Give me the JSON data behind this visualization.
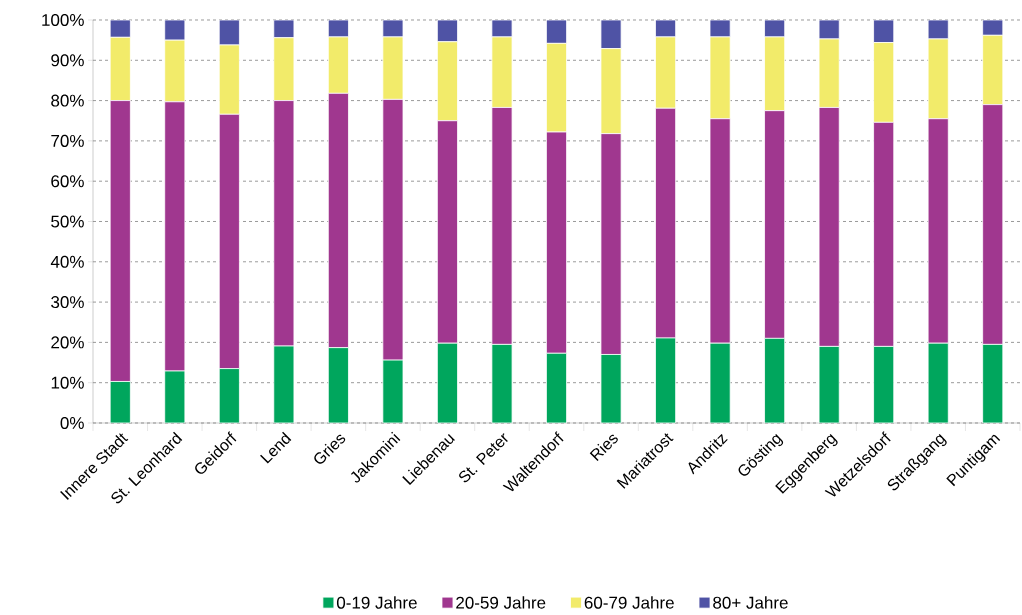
{
  "chart_data": {
    "type": "bar",
    "stacked": true,
    "categories": [
      "Innere Stadt",
      "St. Leonhard",
      "Geidorf",
      "Lend",
      "Gries",
      "Jakomini",
      "Liebenau",
      "St. Peter",
      "Waltendorf",
      "Ries",
      "Mariatrost",
      "Andritz",
      "Gösting",
      "Eggenberg",
      "Wetzelsdorf",
      "Straßgang",
      "Puntigam"
    ],
    "series": [
      {
        "name": "0-19 Jahre",
        "color": "#00a65d",
        "values": [
          10.3,
          12.9,
          13.5,
          19.1,
          18.7,
          15.6,
          19.8,
          19.5,
          17.3,
          17.0,
          21.1,
          19.8,
          21.0,
          19.0,
          19.0,
          19.8,
          19.5
        ]
      },
      {
        "name": "20-59 Jahre",
        "color": "#a0378f",
        "values": [
          69.7,
          66.8,
          63.1,
          60.9,
          63.1,
          64.7,
          55.2,
          58.8,
          54.9,
          54.8,
          57.0,
          55.7,
          56.5,
          59.3,
          55.6,
          55.7,
          59.5
        ]
      },
      {
        "name": "60-79 Jahre",
        "color": "#f2eb6a",
        "values": [
          15.7,
          15.3,
          17.2,
          15.6,
          14.0,
          15.5,
          19.6,
          17.5,
          22.0,
          21.1,
          17.7,
          20.3,
          18.3,
          17.0,
          19.8,
          19.8,
          17.2
        ]
      },
      {
        "name": "80+ Jahre",
        "color": "#4f53a5",
        "values": [
          4.3,
          5.0,
          6.2,
          4.4,
          4.2,
          4.2,
          5.4,
          4.2,
          5.8,
          7.1,
          4.2,
          4.2,
          4.2,
          4.7,
          5.6,
          4.7,
          3.8
        ]
      }
    ],
    "ylim": [
      0,
      100
    ],
    "yticks": [
      {
        "value": 0,
        "label": "0%"
      },
      {
        "value": 10,
        "label": "10%"
      },
      {
        "value": 20,
        "label": "20%"
      },
      {
        "value": 30,
        "label": "30%"
      },
      {
        "value": 40,
        "label": "40%"
      },
      {
        "value": 50,
        "label": "50%"
      },
      {
        "value": 60,
        "label": "60%"
      },
      {
        "value": 70,
        "label": "70%"
      },
      {
        "value": 80,
        "label": "80%"
      },
      {
        "value": 90,
        "label": "90%"
      },
      {
        "value": 100,
        "label": "100%"
      }
    ],
    "grid": "y",
    "legend": "bottom"
  }
}
